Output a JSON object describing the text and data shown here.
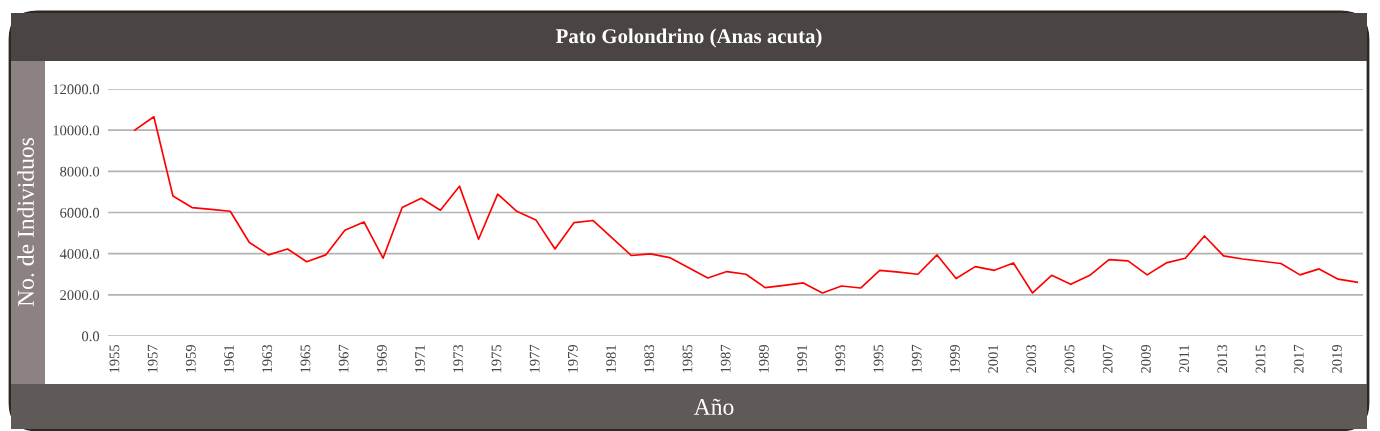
{
  "chart_data": {
    "type": "line",
    "title": "Pato Golondrino (Anas acuta)",
    "xlabel": "Año",
    "ylabel": "No. de Individuos",
    "x": [
      1956,
      1957,
      1958,
      1959,
      1960,
      1961,
      1962,
      1963,
      1964,
      1965,
      1966,
      1967,
      1968,
      1969,
      1970,
      1971,
      1972,
      1973,
      1974,
      1975,
      1976,
      1977,
      1978,
      1979,
      1980,
      1981,
      1982,
      1983,
      1984,
      1985,
      1986,
      1987,
      1988,
      1989,
      1990,
      1991,
      1992,
      1993,
      1994,
      1995,
      1996,
      1997,
      1998,
      1999,
      2000,
      2001,
      2002,
      2003,
      2004,
      2005,
      2006,
      2007,
      2008,
      2009,
      2010,
      2011,
      2012,
      2013,
      2014,
      2015,
      2016,
      2017,
      2018,
      2019,
      2020
    ],
    "series": [
      {
        "color": "#ff0000",
        "values": [
          10000,
          10650,
          6800,
          6240,
          6150,
          6060,
          4540,
          3940,
          4230,
          3610,
          3940,
          5140,
          5540,
          3780,
          6240,
          6690,
          6110,
          7280,
          4700,
          6890,
          6060,
          5640,
          4230,
          5510,
          5610,
          4750,
          3910,
          3990,
          3810,
          3320,
          2820,
          3130,
          3000,
          2350,
          2460,
          2580,
          2090,
          2430,
          2330,
          3190,
          3100,
          3000,
          3940,
          2790,
          3370,
          3190,
          3550,
          2090,
          2950,
          2510,
          2950,
          3710,
          3650,
          2970,
          3550,
          3780,
          4860,
          3890,
          3740,
          3630,
          3520,
          2970,
          3260,
          2760,
          2610
        ]
      }
    ],
    "xlim": [
      1954.6,
      2020.3
    ],
    "xticks": [
      1955,
      1957,
      1959,
      1961,
      1963,
      1965,
      1967,
      1969,
      1971,
      1973,
      1975,
      1977,
      1979,
      1981,
      1983,
      1985,
      1987,
      1989,
      1991,
      1993,
      1995,
      1997,
      1999,
      2001,
      2003,
      2005,
      2007,
      2009,
      2011,
      2013,
      2015,
      2017,
      2019
    ],
    "ylim": [
      0,
      12000
    ],
    "yticks": [
      {
        "value": 0,
        "label": "0.0"
      },
      {
        "value": 2000,
        "label": "2000.0"
      },
      {
        "value": 4000,
        "label": "4000.0"
      },
      {
        "value": 6000,
        "label": "6000.0"
      },
      {
        "value": 8000,
        "label": "8000.0"
      },
      {
        "value": 10000,
        "label": "10000.0"
      },
      {
        "value": 12000,
        "label": "12000.0"
      }
    ],
    "grid": "y",
    "marker": "none",
    "line_style": "solid"
  }
}
